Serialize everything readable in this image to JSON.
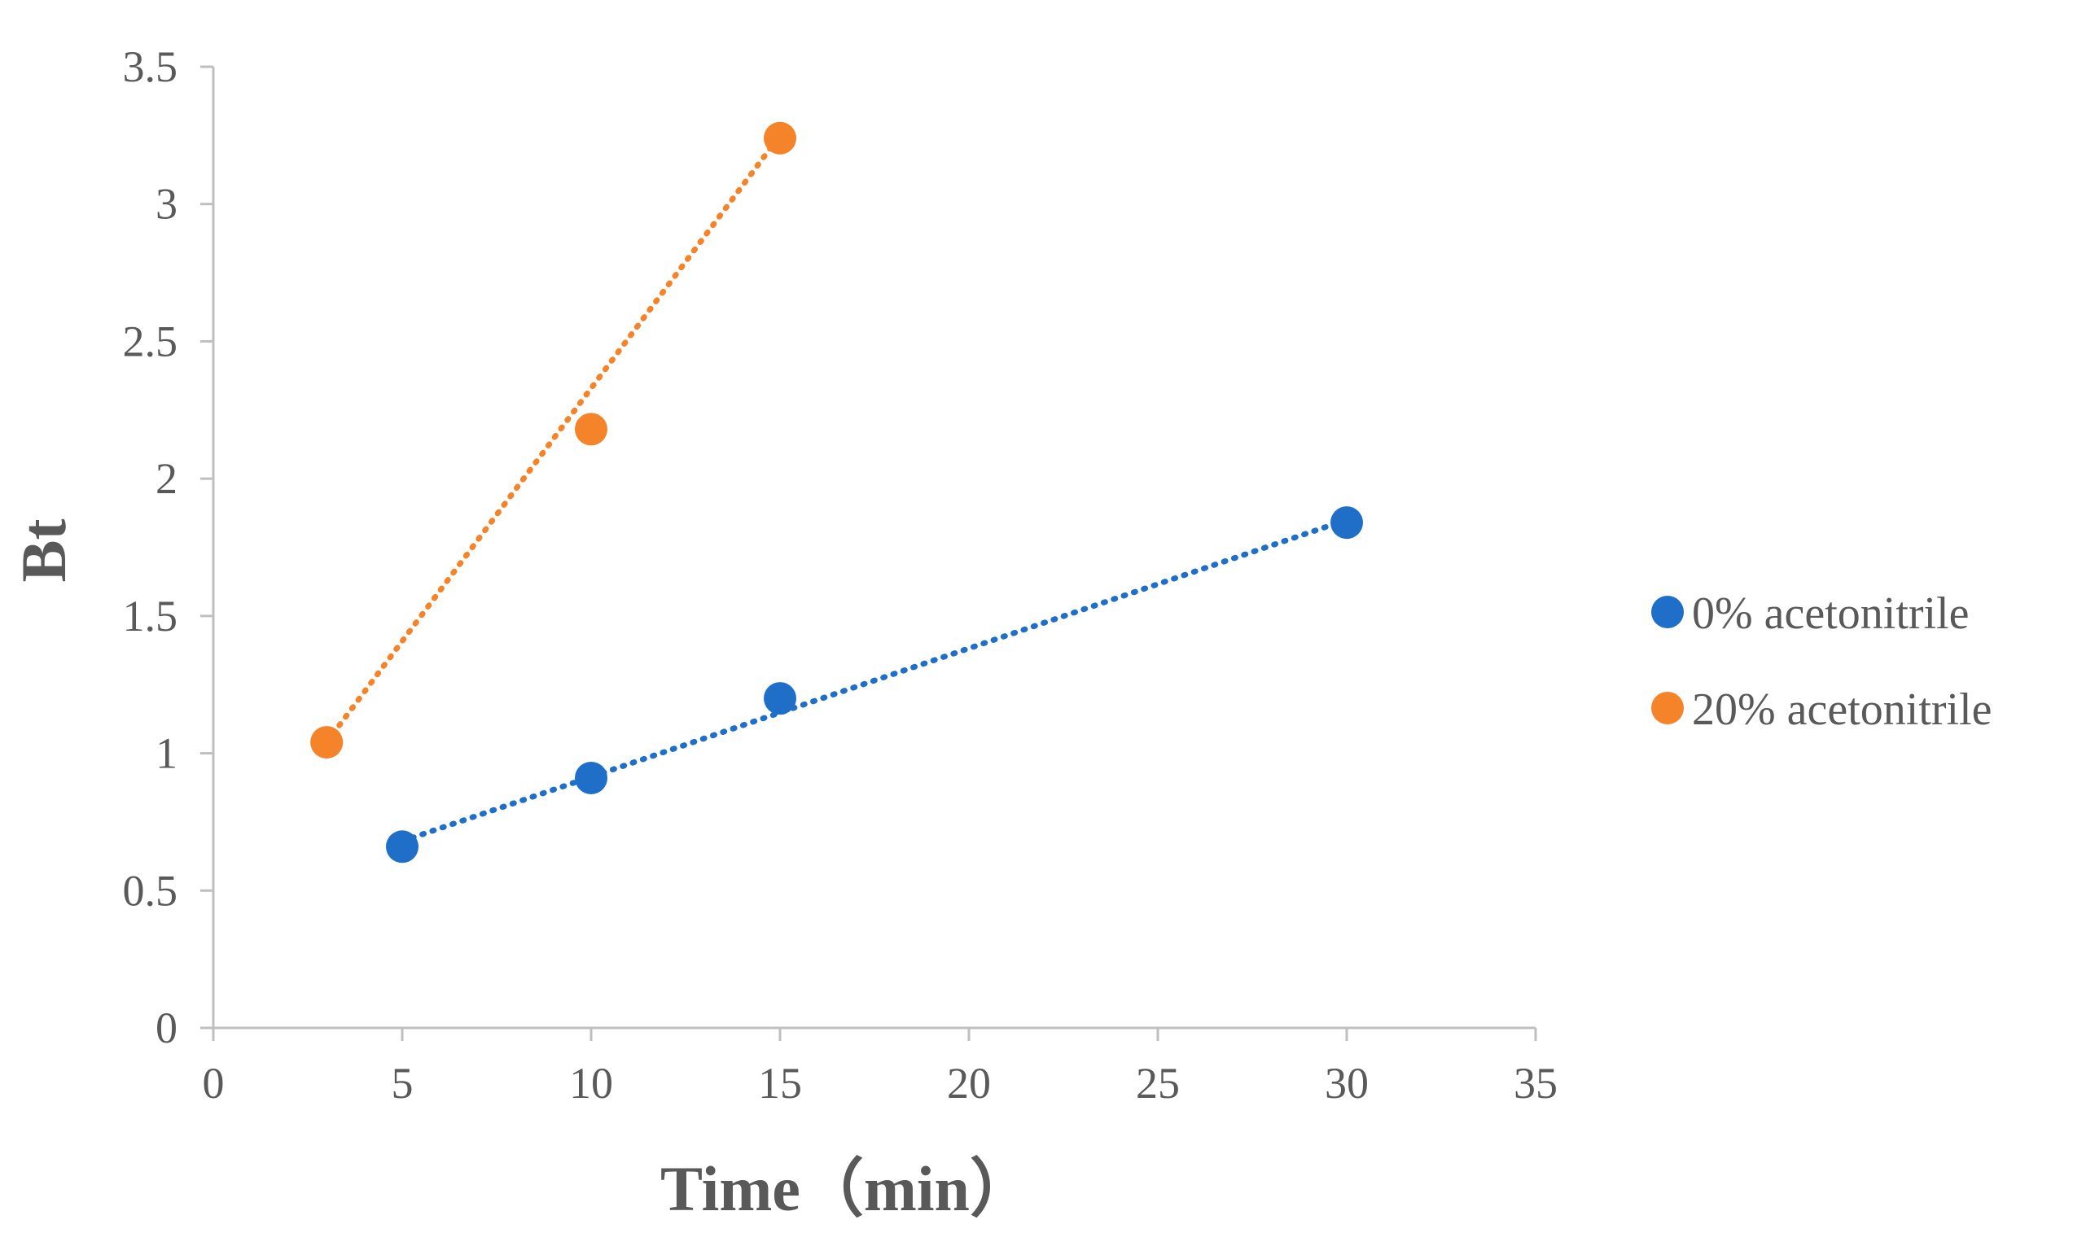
{
  "chart_data": {
    "type": "scatter",
    "title": "",
    "xlabel": "Time（min）",
    "ylabel": "Bt",
    "xlim": [
      0,
      35
    ],
    "ylim": [
      0,
      3.5
    ],
    "x_ticks": [
      "0",
      "5",
      "10",
      "15",
      "20",
      "25",
      "30",
      "35"
    ],
    "y_ticks": [
      "0",
      "0.5",
      "1",
      "1.5",
      "2",
      "2.5",
      "3",
      "3.5"
    ],
    "grid": false,
    "legend_position": "right",
    "trendlines": "linear, dotted",
    "series": [
      {
        "name": "0% acetonitrile",
        "color": "#1f6fc8",
        "x": [
          5,
          10,
          15,
          30
        ],
        "y": [
          0.66,
          0.91,
          1.2,
          1.84
        ],
        "trend_start": [
          5,
          0.68
        ],
        "trend_end": [
          30,
          1.85
        ]
      },
      {
        "name": "20% acetonitrile",
        "color": "#f5832a",
        "x": [
          3,
          10,
          15
        ],
        "y": [
          1.04,
          2.18,
          3.24
        ],
        "trend_start": [
          3,
          1.04
        ],
        "trend_end": [
          15,
          3.25
        ]
      }
    ]
  }
}
